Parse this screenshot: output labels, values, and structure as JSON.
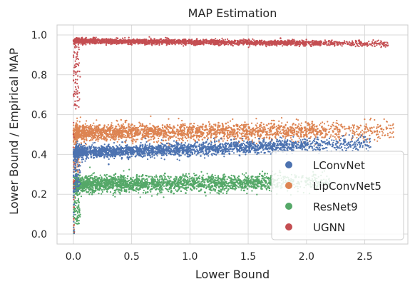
{
  "chart_data": {
    "type": "scatter",
    "title": "MAP Estimation",
    "xlabel": "Lower Bound",
    "ylabel": "Lower Bound / Empirical MAP",
    "xlim": [
      -0.14,
      2.87
    ],
    "ylim": [
      -0.05,
      1.05
    ],
    "x_ticks": [
      0.0,
      0.5,
      1.0,
      1.5,
      2.0,
      2.5
    ],
    "x_tick_labels": [
      "0.0",
      "0.5",
      "1.0",
      "1.5",
      "2.0",
      "2.5"
    ],
    "y_ticks": [
      0.0,
      0.2,
      0.4,
      0.6,
      0.8,
      1.0
    ],
    "y_tick_labels": [
      "0.0",
      "0.2",
      "0.4",
      "0.6",
      "0.8",
      "1.0"
    ],
    "grid": true,
    "legend_position": "lower-right",
    "series": [
      {
        "name": "LConvNet",
        "color": "#4c72b0",
        "x_range": [
          0.0,
          2.55
        ],
        "y_center": [
          0.41,
          0.455
        ],
        "y_spread": 0.03,
        "sample_points": [
          {
            "x": 0.05,
            "y": 0.41
          },
          {
            "x": 0.5,
            "y": 0.42
          },
          {
            "x": 1.0,
            "y": 0.43
          },
          {
            "x": 1.5,
            "y": 0.44
          },
          {
            "x": 2.0,
            "y": 0.45
          },
          {
            "x": 2.45,
            "y": 0.44
          }
        ]
      },
      {
        "name": "LipConvNet5",
        "color": "#dd8452",
        "x_range": [
          0.0,
          2.75
        ],
        "y_center": [
          0.51,
          0.52
        ],
        "y_spread": 0.04,
        "sample_points": [
          {
            "x": 0.05,
            "y": 0.5
          },
          {
            "x": 0.5,
            "y": 0.52
          },
          {
            "x": 1.0,
            "y": 0.52
          },
          {
            "x": 1.5,
            "y": 0.52
          },
          {
            "x": 2.0,
            "y": 0.52
          },
          {
            "x": 2.7,
            "y": 0.53
          }
        ]
      },
      {
        "name": "ResNet9",
        "color": "#55a868",
        "x_range": [
          0.0,
          2.2
        ],
        "y_center": [
          0.25,
          0.26
        ],
        "y_spread": 0.04,
        "sample_points": [
          {
            "x": 0.05,
            "y": 0.24
          },
          {
            "x": 0.5,
            "y": 0.25
          },
          {
            "x": 1.0,
            "y": 0.25
          },
          {
            "x": 1.5,
            "y": 0.26
          },
          {
            "x": 2.0,
            "y": 0.27
          },
          {
            "x": 2.2,
            "y": 0.27
          }
        ]
      },
      {
        "name": "UGNN",
        "color": "#c44e52",
        "x_range": [
          0.0,
          2.7
        ],
        "y_center": [
          0.97,
          0.955
        ],
        "y_spread": 0.012,
        "sample_points": [
          {
            "x": 0.02,
            "y": 0.85
          },
          {
            "x": 0.05,
            "y": 0.95
          },
          {
            "x": 0.5,
            "y": 0.97
          },
          {
            "x": 1.0,
            "y": 0.97
          },
          {
            "x": 1.5,
            "y": 0.965
          },
          {
            "x": 2.0,
            "y": 0.96
          },
          {
            "x": 2.6,
            "y": 0.955
          }
        ]
      }
    ]
  }
}
